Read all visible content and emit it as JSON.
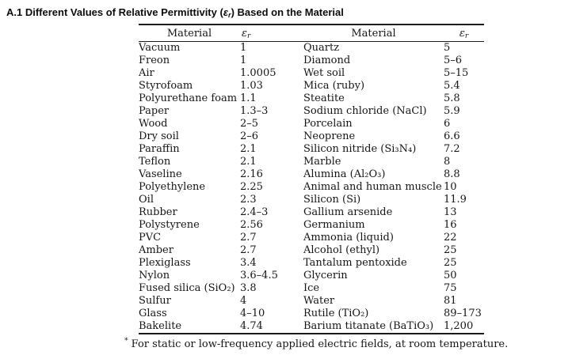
{
  "title": {
    "prefix": "A.1 Different Values of Relative Permittivity (",
    "symbol": "ε",
    "symbol_sub": "r",
    "suffix": ") Based on the Material"
  },
  "table": {
    "col_headers": {
      "material_left": "Material",
      "eps_base_left": "ε",
      "eps_sub_left": "r",
      "material_right": "Material",
      "eps_base_right": "ε",
      "eps_sub_right": "r"
    },
    "rows": [
      {
        "m1": "Vacuum",
        "v1": "1",
        "m2": "Quartz",
        "v2": "5"
      },
      {
        "m1": "Freon",
        "v1": "1",
        "m2": "Diamond",
        "v2": "5–6"
      },
      {
        "m1": "Air",
        "v1": "1.0005",
        "m2": "Wet soil",
        "v2": "5–15"
      },
      {
        "m1": "Styrofoam",
        "v1": "1.03",
        "m2": "Mica (ruby)",
        "v2": "5.4"
      },
      {
        "m1": "Polyurethane foam",
        "v1": "1.1",
        "m2": "Steatite",
        "v2": "5.8"
      },
      {
        "m1": "Paper",
        "v1": "1.3–3",
        "m2": "Sodium chloride (NaCl)",
        "v2": "5.9"
      },
      {
        "m1": "Wood",
        "v1": "2–5",
        "m2": "Porcelain",
        "v2": "6"
      },
      {
        "m1": "Dry soil",
        "v1": "2–6",
        "m2": "Neoprene",
        "v2": "6.6"
      },
      {
        "m1": "Paraffin",
        "v1": "2.1",
        "m2": "Silicon nitride (Si₃N₄)",
        "v2": "7.2"
      },
      {
        "m1": "Teflon",
        "v1": "2.1",
        "m2": "Marble",
        "v2": "8"
      },
      {
        "m1": "Vaseline",
        "v1": "2.16",
        "m2": "Alumina (Al₂O₃)",
        "v2": "8.8"
      },
      {
        "m1": "Polyethylene",
        "v1": "2.25",
        "m2": "Animal and human muscle",
        "v2": "10"
      },
      {
        "m1": "Oil",
        "v1": "2.3",
        "m2": "Silicon (Si)",
        "v2": "11.9"
      },
      {
        "m1": "Rubber",
        "v1": "2.4–3",
        "m2": "Gallium arsenide",
        "v2": "13"
      },
      {
        "m1": "Polystyrene",
        "v1": "2.56",
        "m2": "Germanium",
        "v2": "16"
      },
      {
        "m1": "PVC",
        "v1": "2.7",
        "m2": "Ammonia (liquid)",
        "v2": "22"
      },
      {
        "m1": "Amber",
        "v1": "2.7",
        "m2": "Alcohol (ethyl)",
        "v2": "25"
      },
      {
        "m1": "Plexiglass",
        "v1": "3.4",
        "m2": "Tantalum pentoxide",
        "v2": "25"
      },
      {
        "m1": "Nylon",
        "v1": "3.6–4.5",
        "m2": "Glycerin",
        "v2": "50"
      },
      {
        "m1": "Fused silica (SiO₂)",
        "v1": "3.8",
        "m2": "Ice",
        "v2": "75"
      },
      {
        "m1": "Sulfur",
        "v1": "4",
        "m2": "Water",
        "v2": "81"
      },
      {
        "m1": "Glass",
        "v1": "4–10",
        "m2": "Rutile (TiO₂)",
        "v2": "89–173"
      },
      {
        "m1": "Bakelite",
        "v1": "4.74",
        "m2": "Barium titanate (BaTiO₃)",
        "v2": "1,200"
      }
    ]
  },
  "footnote": {
    "marker": "*",
    "text": "For static or low-frequency applied electric fields, at room temperature."
  }
}
